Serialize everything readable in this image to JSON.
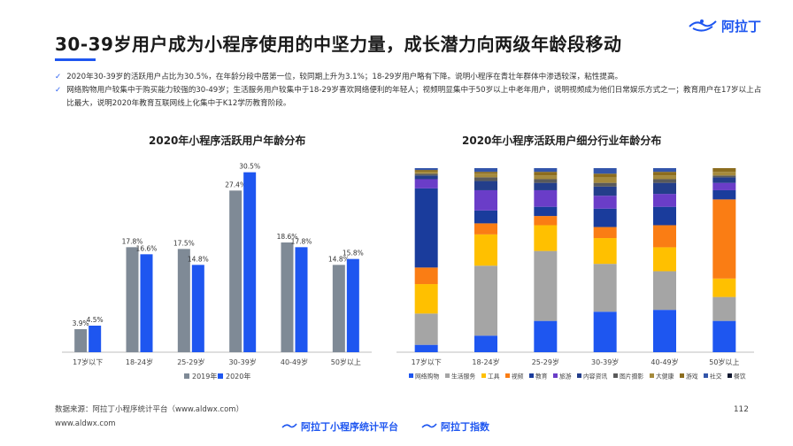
{
  "header": {
    "title": "30-39岁用户成为小程序使用的中坚力量，成长潜力向两级年龄段移动",
    "logo_text": "阿拉丁"
  },
  "bullets": [
    "2020年30-39岁的活跃用户占比为30.5%，在年龄分段中居第一位，较同期上升为3.1%；18-29岁用户略有下降。说明小程序在青壮年群体中渗透较深，粘性提高。",
    "网络购物用户较集中于购买能力较强的30-49岁；生活服务用户较集中于18-29岁喜欢网络便利的年轻人；视频明显集中于50岁以上中老年用户，说明视频成为他们日常娱乐方式之一；教育用户在17岁以上占比最大，说明2020年教育互联网线上化集中于K12学历教育阶段。"
  ],
  "colors": {
    "accent": "#1e56f0",
    "grey_bar": "#7f8a96"
  },
  "chart_data": [
    {
      "type": "bar",
      "title": "2020年小程序活跃用户年龄分布",
      "categories": [
        "17岁以下",
        "18-24岁",
        "25-29岁",
        "30-39岁",
        "40-49岁",
        "50岁以上"
      ],
      "series": [
        {
          "name": "2019年",
          "color": "#7f8a96",
          "values": [
            3.9,
            17.8,
            17.5,
            27.4,
            18.6,
            14.8
          ],
          "labels": [
            "3.9%",
            "17.8%",
            "17.5%",
            "27.4%",
            "18.6%",
            "14.8%"
          ]
        },
        {
          "name": "2020年",
          "color": "#1e56f0",
          "values": [
            4.5,
            16.6,
            14.8,
            30.5,
            17.8,
            15.8
          ],
          "labels": [
            "4.5%",
            "16.6%",
            "14.8%",
            "30.5%",
            "17.8%",
            "15.8%"
          ]
        }
      ],
      "ylim": [
        0,
        33
      ],
      "legend": "bottom"
    },
    {
      "type": "bar",
      "stacked": true,
      "title": "2020年小程序活跃用户细分行业年龄分布",
      "categories": [
        "17岁以下",
        "18-24岁",
        "25-29岁",
        "30-39岁",
        "40-49岁",
        "50岁以上"
      ],
      "series": [
        {
          "name": "网络购物",
          "color": "#1e56f0",
          "values": [
            4,
            9,
            17,
            22,
            23,
            17
          ]
        },
        {
          "name": "生活服务",
          "color": "#a5a5a5",
          "values": [
            17,
            38,
            38,
            26,
            21,
            13
          ]
        },
        {
          "name": "工具",
          "color": "#ffc000",
          "values": [
            16,
            17,
            14,
            14,
            13,
            10
          ]
        },
        {
          "name": "视频",
          "color": "#fa7d14",
          "values": [
            9,
            6,
            5,
            6,
            12,
            43
          ]
        },
        {
          "name": "教育",
          "color": "#1a3c9c",
          "values": [
            43,
            7,
            5,
            10,
            10,
            5
          ]
        },
        {
          "name": "旅游",
          "color": "#6a3dc8",
          "values": [
            5,
            11,
            9,
            7,
            7,
            4
          ]
        },
        {
          "name": "内容资讯",
          "color": "#233e8b",
          "values": [
            2,
            5,
            4,
            5,
            6,
            3
          ]
        },
        {
          "name": "图片摄影",
          "color": "#5a5a5a",
          "values": [
            1,
            2,
            2,
            2,
            2,
            1
          ]
        },
        {
          "name": "大健康",
          "color": "#a58a3c",
          "values": [
            1,
            2,
            2,
            3,
            2,
            2
          ]
        },
        {
          "name": "游戏",
          "color": "#8c6d1f",
          "values": [
            1,
            1,
            2,
            2,
            2,
            2
          ]
        },
        {
          "name": "社交",
          "color": "#3355aa",
          "values": [
            1,
            2,
            2,
            3,
            2,
            0
          ]
        },
        {
          "name": "餐饮",
          "color": "#101830",
          "values": [
            0,
            0,
            0,
            0,
            0,
            0
          ]
        }
      ],
      "ylim": [
        0,
        100
      ],
      "legend": "bottom"
    }
  ],
  "footer": {
    "source": "数据来源：阿拉丁小程序统计平台（www.aldwx.com）",
    "url": "www.aldwx.com",
    "page": "112",
    "logo1": "阿拉丁小程序统计平台",
    "logo2": "阿拉丁指数"
  }
}
